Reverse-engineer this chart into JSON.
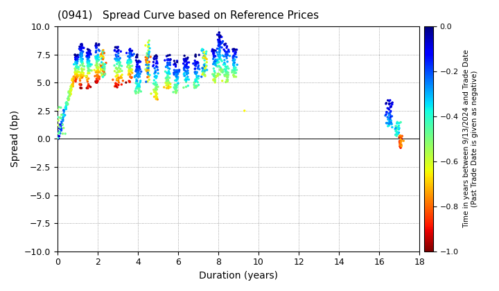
{
  "title": "(0941)   Spread Curve based on Reference Prices",
  "xlabel": "Duration (years)",
  "ylabel": "Spread (bp)",
  "colorbar_label": "Time in years between 9/13/2024 and Trade Date\n(Past Trade Date is given as negative)",
  "xlim": [
    0,
    18
  ],
  "ylim": [
    -10,
    10
  ],
  "xticks": [
    0,
    2,
    4,
    6,
    8,
    10,
    12,
    14,
    16,
    18
  ],
  "yticks": [
    -10.0,
    -7.5,
    -5.0,
    -2.5,
    0.0,
    2.5,
    5.0,
    7.5,
    10.0
  ],
  "cmap": "jet_r",
  "clim": [
    -1.0,
    0.0
  ],
  "cticks": [
    0.0,
    -0.2,
    -0.4,
    -0.6,
    -0.8,
    -1.0
  ],
  "background": "#ffffff",
  "grid_color": "#888888",
  "figsize": [
    7.2,
    4.2
  ],
  "dpi": 100,
  "marker_size": 6
}
